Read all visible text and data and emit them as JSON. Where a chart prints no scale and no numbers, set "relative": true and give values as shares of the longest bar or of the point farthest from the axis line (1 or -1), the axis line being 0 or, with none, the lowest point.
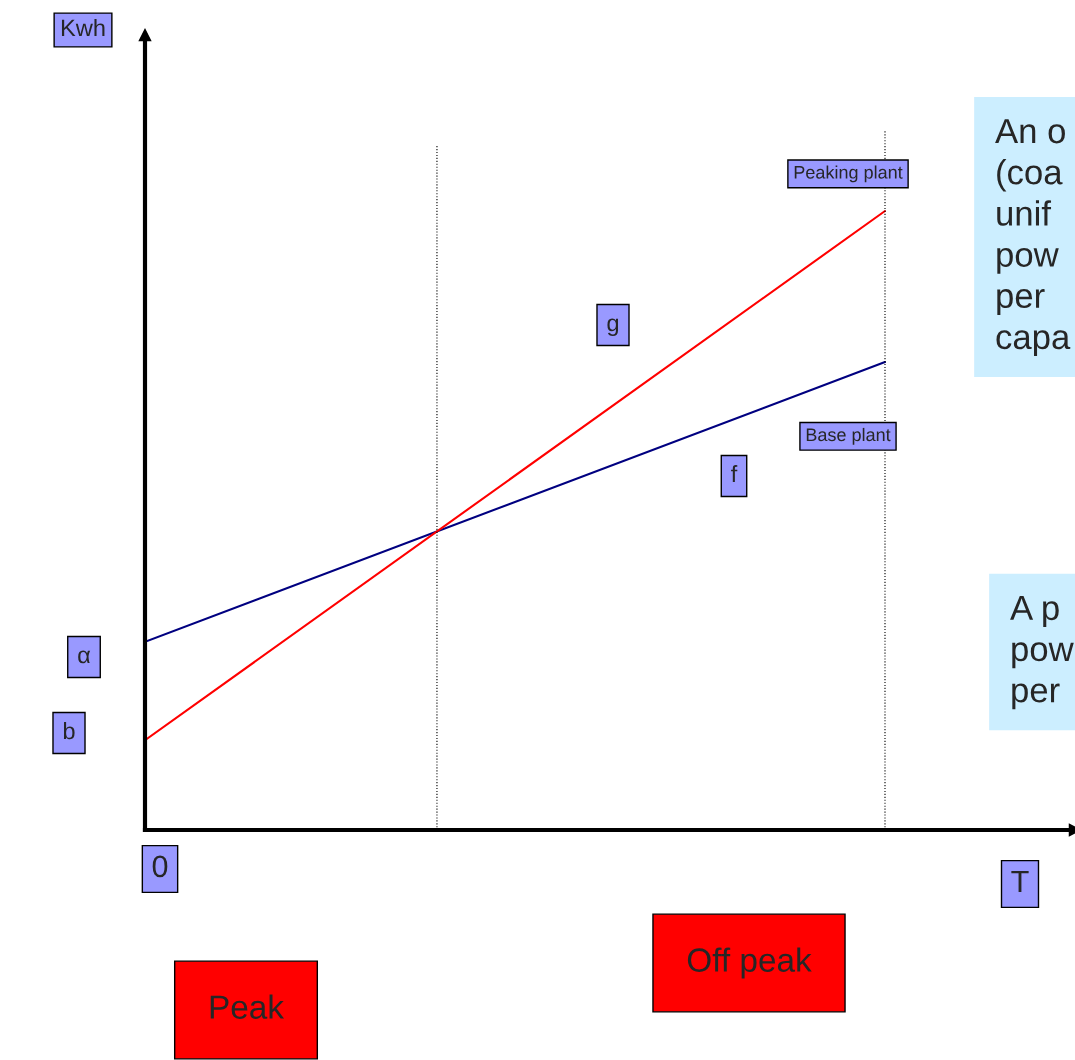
{
  "chart_data": {
    "type": "line",
    "relative": true,
    "xlabel": "T",
    "categories": [
      null,
      null
    ],
    "series": [
      {
        "name": "Base plant",
        "color": "#000080",
        "values": [
          0.304,
          0.756
        ]
      },
      {
        "name": "Peaking plant",
        "color": "#ff0000",
        "values": [
          0.145,
          1.0
        ]
      }
    ],
    "annotations": [
      "Kwh",
      "0",
      "α",
      "b",
      "g",
      "f",
      "Peak",
      "Off peak",
      "An o\n(coa\nunif\npow\nper\ncapa",
      "A p\npow\nper"
    ],
    "marker": "none",
    "line_style": "solid"
  }
}
